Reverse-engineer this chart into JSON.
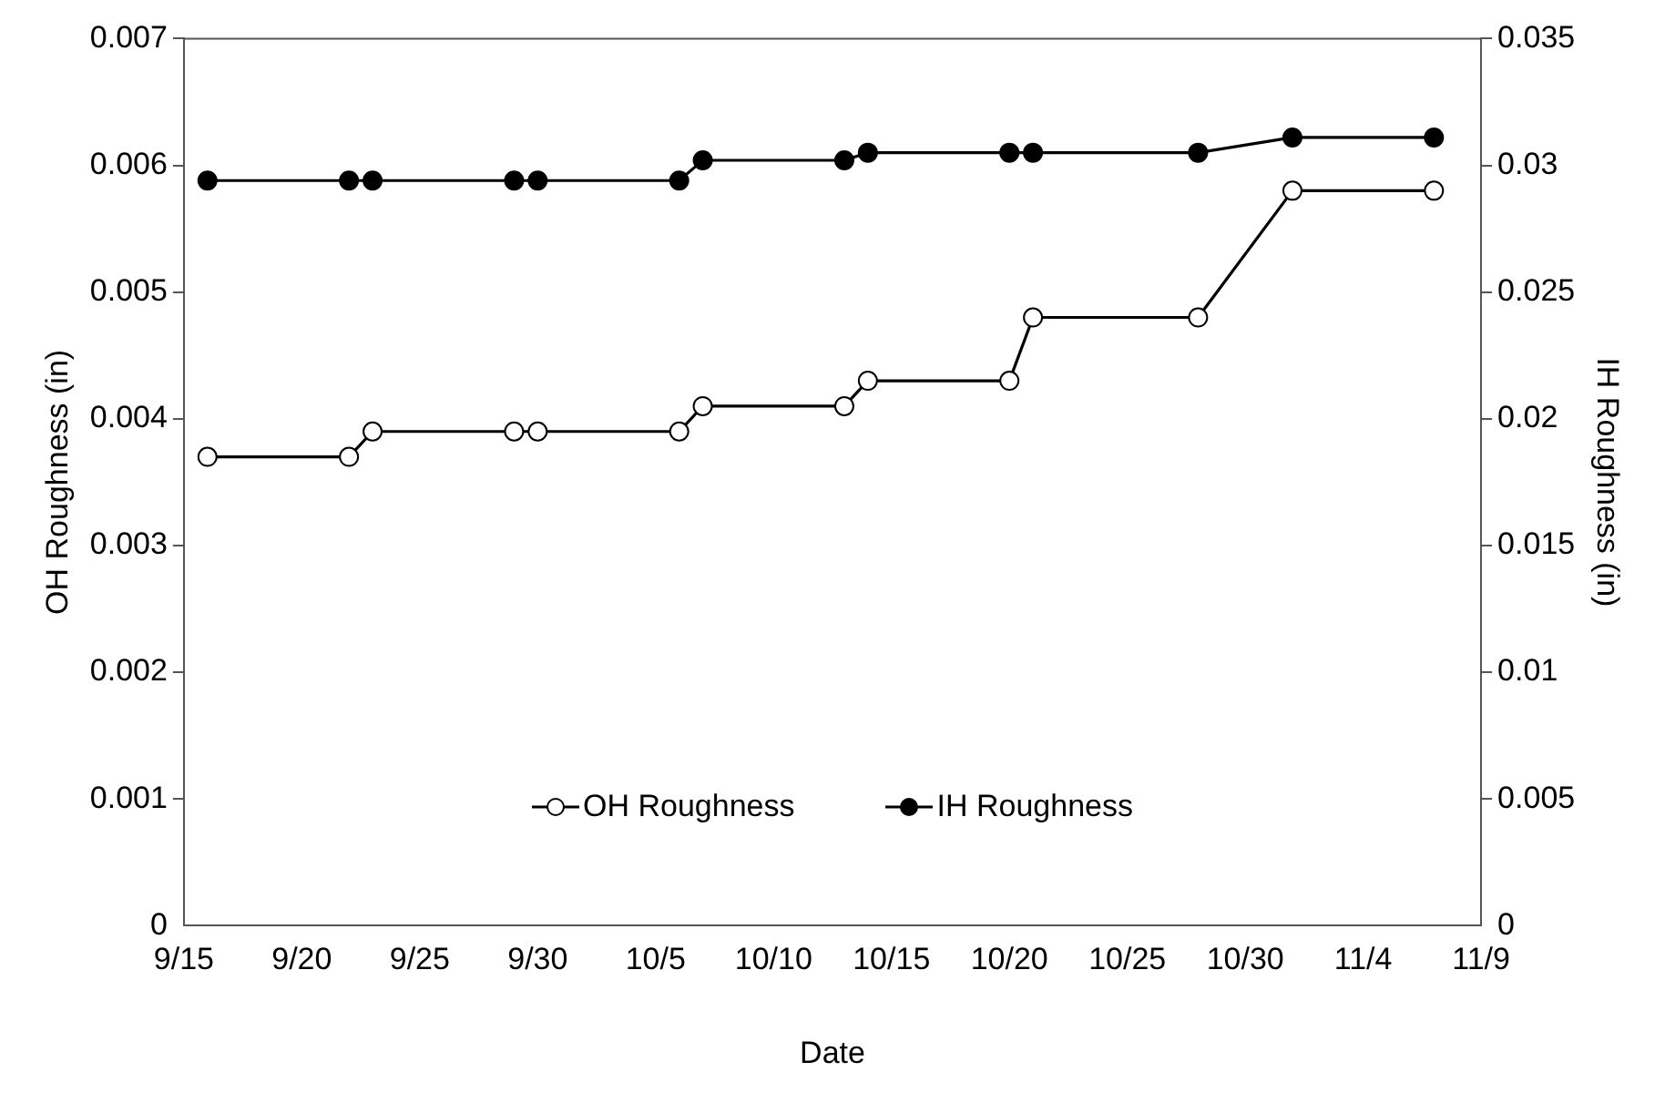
{
  "chart_data": {
    "type": "line",
    "xlabel": "Date",
    "ylabel": "OH Roughness (in)",
    "y2label": "IH Roughness (in)",
    "x": [
      "--09-16",
      "--09-22",
      "--09-23",
      "--09-29",
      "--09-30",
      "--10-06",
      "--10-07",
      "--10-13",
      "--10-14",
      "--10-20",
      "--10-21",
      "--10-28",
      "--11-01",
      "--11-07"
    ],
    "series": [
      {
        "name": "OH Roughness",
        "color": "#000000",
        "values": [
          0.0037,
          0.0037,
          0.0039,
          0.0039,
          0.0039,
          0.0039,
          0.0041,
          0.0041,
          0.0043,
          0.0043,
          0.0048,
          0.0048,
          0.0058,
          0.0058
        ]
      },
      {
        "name": "IH Roughness",
        "color": "#000000",
        "axis": "y2",
        "values": [
          0.0294,
          0.0294,
          0.0294,
          0.0294,
          0.0294,
          0.0294,
          0.0302,
          0.0302,
          0.0305,
          0.0305,
          0.0305,
          0.0305,
          0.0311,
          0.0311
        ]
      }
    ],
    "xlim": [
      "--09-15",
      "--11-09"
    ],
    "xticks": [
      {
        "value": "--09-15",
        "label": "9/15"
      },
      {
        "value": "--09-20",
        "label": "9/20"
      },
      {
        "value": "--09-25",
        "label": "9/25"
      },
      {
        "value": "--09-30",
        "label": "9/30"
      },
      {
        "value": "--10-05",
        "label": "10/5"
      },
      {
        "value": "--10-10",
        "label": "10/10"
      },
      {
        "value": "--10-15",
        "label": "10/15"
      },
      {
        "value": "--10-20",
        "label": "10/20"
      },
      {
        "value": "--10-25",
        "label": "10/25"
      },
      {
        "value": "--10-30",
        "label": "10/30"
      },
      {
        "value": "--11-04",
        "label": "11/4"
      },
      {
        "value": "--11-09",
        "label": "11/9"
      }
    ],
    "ylim": [
      0,
      0.007
    ],
    "yticks": [
      0,
      0.001,
      0.002,
      0.003,
      0.004,
      0.005,
      0.006,
      0.007
    ],
    "y2lim": [
      0,
      0.035
    ],
    "y2ticks": [
      0,
      0.005,
      0.01,
      0.015,
      0.02,
      0.025,
      0.03,
      0.035
    ],
    "grid": false,
    "legend": "bottom",
    "marker": "circle",
    "line_style": "solid"
  }
}
